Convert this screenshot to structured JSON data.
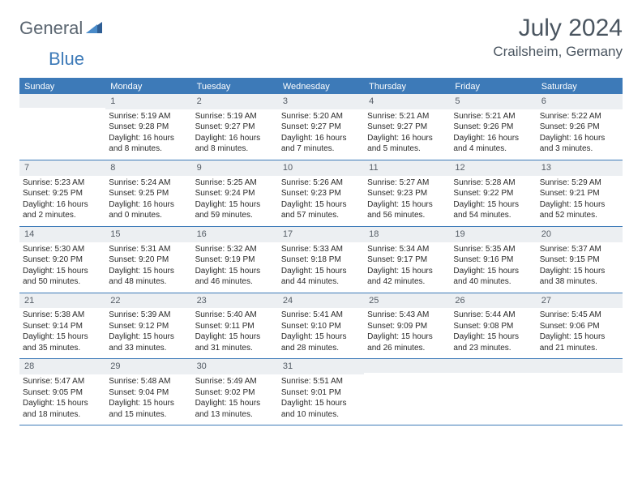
{
  "logo": {
    "general": "General",
    "blue": "Blue"
  },
  "title": "July 2024",
  "location": "Crailsheim, Germany",
  "header_bg": "#3d7ab8",
  "weekdays": [
    "Sunday",
    "Monday",
    "Tuesday",
    "Wednesday",
    "Thursday",
    "Friday",
    "Saturday"
  ],
  "weeks": [
    [
      null,
      {
        "n": "1",
        "sr": "Sunrise: 5:19 AM",
        "ss": "Sunset: 9:28 PM",
        "d1": "Daylight: 16 hours",
        "d2": "and 8 minutes."
      },
      {
        "n": "2",
        "sr": "Sunrise: 5:19 AM",
        "ss": "Sunset: 9:27 PM",
        "d1": "Daylight: 16 hours",
        "d2": "and 8 minutes."
      },
      {
        "n": "3",
        "sr": "Sunrise: 5:20 AM",
        "ss": "Sunset: 9:27 PM",
        "d1": "Daylight: 16 hours",
        "d2": "and 7 minutes."
      },
      {
        "n": "4",
        "sr": "Sunrise: 5:21 AM",
        "ss": "Sunset: 9:27 PM",
        "d1": "Daylight: 16 hours",
        "d2": "and 5 minutes."
      },
      {
        "n": "5",
        "sr": "Sunrise: 5:21 AM",
        "ss": "Sunset: 9:26 PM",
        "d1": "Daylight: 16 hours",
        "d2": "and 4 minutes."
      },
      {
        "n": "6",
        "sr": "Sunrise: 5:22 AM",
        "ss": "Sunset: 9:26 PM",
        "d1": "Daylight: 16 hours",
        "d2": "and 3 minutes."
      }
    ],
    [
      {
        "n": "7",
        "sr": "Sunrise: 5:23 AM",
        "ss": "Sunset: 9:25 PM",
        "d1": "Daylight: 16 hours",
        "d2": "and 2 minutes."
      },
      {
        "n": "8",
        "sr": "Sunrise: 5:24 AM",
        "ss": "Sunset: 9:25 PM",
        "d1": "Daylight: 16 hours",
        "d2": "and 0 minutes."
      },
      {
        "n": "9",
        "sr": "Sunrise: 5:25 AM",
        "ss": "Sunset: 9:24 PM",
        "d1": "Daylight: 15 hours",
        "d2": "and 59 minutes."
      },
      {
        "n": "10",
        "sr": "Sunrise: 5:26 AM",
        "ss": "Sunset: 9:23 PM",
        "d1": "Daylight: 15 hours",
        "d2": "and 57 minutes."
      },
      {
        "n": "11",
        "sr": "Sunrise: 5:27 AM",
        "ss": "Sunset: 9:23 PM",
        "d1": "Daylight: 15 hours",
        "d2": "and 56 minutes."
      },
      {
        "n": "12",
        "sr": "Sunrise: 5:28 AM",
        "ss": "Sunset: 9:22 PM",
        "d1": "Daylight: 15 hours",
        "d2": "and 54 minutes."
      },
      {
        "n": "13",
        "sr": "Sunrise: 5:29 AM",
        "ss": "Sunset: 9:21 PM",
        "d1": "Daylight: 15 hours",
        "d2": "and 52 minutes."
      }
    ],
    [
      {
        "n": "14",
        "sr": "Sunrise: 5:30 AM",
        "ss": "Sunset: 9:20 PM",
        "d1": "Daylight: 15 hours",
        "d2": "and 50 minutes."
      },
      {
        "n": "15",
        "sr": "Sunrise: 5:31 AM",
        "ss": "Sunset: 9:20 PM",
        "d1": "Daylight: 15 hours",
        "d2": "and 48 minutes."
      },
      {
        "n": "16",
        "sr": "Sunrise: 5:32 AM",
        "ss": "Sunset: 9:19 PM",
        "d1": "Daylight: 15 hours",
        "d2": "and 46 minutes."
      },
      {
        "n": "17",
        "sr": "Sunrise: 5:33 AM",
        "ss": "Sunset: 9:18 PM",
        "d1": "Daylight: 15 hours",
        "d2": "and 44 minutes."
      },
      {
        "n": "18",
        "sr": "Sunrise: 5:34 AM",
        "ss": "Sunset: 9:17 PM",
        "d1": "Daylight: 15 hours",
        "d2": "and 42 minutes."
      },
      {
        "n": "19",
        "sr": "Sunrise: 5:35 AM",
        "ss": "Sunset: 9:16 PM",
        "d1": "Daylight: 15 hours",
        "d2": "and 40 minutes."
      },
      {
        "n": "20",
        "sr": "Sunrise: 5:37 AM",
        "ss": "Sunset: 9:15 PM",
        "d1": "Daylight: 15 hours",
        "d2": "and 38 minutes."
      }
    ],
    [
      {
        "n": "21",
        "sr": "Sunrise: 5:38 AM",
        "ss": "Sunset: 9:14 PM",
        "d1": "Daylight: 15 hours",
        "d2": "and 35 minutes."
      },
      {
        "n": "22",
        "sr": "Sunrise: 5:39 AM",
        "ss": "Sunset: 9:12 PM",
        "d1": "Daylight: 15 hours",
        "d2": "and 33 minutes."
      },
      {
        "n": "23",
        "sr": "Sunrise: 5:40 AM",
        "ss": "Sunset: 9:11 PM",
        "d1": "Daylight: 15 hours",
        "d2": "and 31 minutes."
      },
      {
        "n": "24",
        "sr": "Sunrise: 5:41 AM",
        "ss": "Sunset: 9:10 PM",
        "d1": "Daylight: 15 hours",
        "d2": "and 28 minutes."
      },
      {
        "n": "25",
        "sr": "Sunrise: 5:43 AM",
        "ss": "Sunset: 9:09 PM",
        "d1": "Daylight: 15 hours",
        "d2": "and 26 minutes."
      },
      {
        "n": "26",
        "sr": "Sunrise: 5:44 AM",
        "ss": "Sunset: 9:08 PM",
        "d1": "Daylight: 15 hours",
        "d2": "and 23 minutes."
      },
      {
        "n": "27",
        "sr": "Sunrise: 5:45 AM",
        "ss": "Sunset: 9:06 PM",
        "d1": "Daylight: 15 hours",
        "d2": "and 21 minutes."
      }
    ],
    [
      {
        "n": "28",
        "sr": "Sunrise: 5:47 AM",
        "ss": "Sunset: 9:05 PM",
        "d1": "Daylight: 15 hours",
        "d2": "and 18 minutes."
      },
      {
        "n": "29",
        "sr": "Sunrise: 5:48 AM",
        "ss": "Sunset: 9:04 PM",
        "d1": "Daylight: 15 hours",
        "d2": "and 15 minutes."
      },
      {
        "n": "30",
        "sr": "Sunrise: 5:49 AM",
        "ss": "Sunset: 9:02 PM",
        "d1": "Daylight: 15 hours",
        "d2": "and 13 minutes."
      },
      {
        "n": "31",
        "sr": "Sunrise: 5:51 AM",
        "ss": "Sunset: 9:01 PM",
        "d1": "Daylight: 15 hours",
        "d2": "and 10 minutes."
      },
      null,
      null,
      null
    ]
  ]
}
